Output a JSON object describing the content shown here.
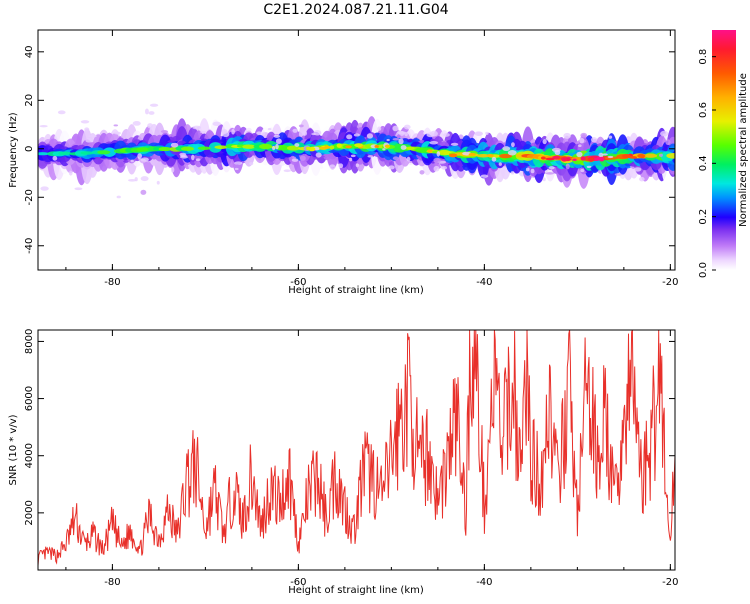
{
  "title": "C2E1.2024.087.21.11.G04",
  "chart_data": [
    {
      "type": "heatmap",
      "xlabel": "Height of straight line (km)",
      "ylabel": "Frequency (Hz)",
      "xlim": [
        -88,
        -19.5
      ],
      "ylim": [
        -50,
        49
      ],
      "xticks": [
        -80,
        -60,
        -40,
        -20
      ],
      "yticks": [
        -40,
        -20,
        0,
        20,
        40
      ],
      "colorbar": {
        "label": "Normalized spectral amplitude",
        "range": [
          0,
          0.9
        ],
        "ticks": [
          0.0,
          0.2,
          0.4,
          0.6,
          0.8
        ]
      },
      "ridge": {
        "x": [
          -88,
          -84,
          -80,
          -76,
          -72,
          -68,
          -64,
          -60,
          -56,
          -52,
          -48,
          -44,
          -40,
          -36,
          -32,
          -28,
          -24,
          -20
        ],
        "y": [
          -2,
          -2,
          -1,
          0,
          0,
          1,
          1,
          0,
          1,
          1,
          0,
          -2,
          -3,
          -3,
          -4,
          -4,
          -3,
          -3
        ],
        "strength": [
          0.35,
          0.4,
          0.45,
          0.5,
          0.5,
          0.55,
          0.5,
          0.55,
          0.55,
          0.6,
          0.55,
          0.6,
          0.7,
          0.75,
          0.8,
          0.9,
          0.7,
          0.65
        ]
      }
    },
    {
      "type": "line",
      "xlabel": "Height of straight line (km)",
      "ylabel": "SNR (10 * v/v)",
      "xlim": [
        -88,
        -19.5
      ],
      "ylim": [
        0,
        8400
      ],
      "xticks": [
        -80,
        -60,
        -40,
        -20
      ],
      "yticks": [
        2000,
        4000,
        6000,
        8000
      ],
      "color": "#e8302a",
      "series": [
        {
          "x": [
            -88,
            -87,
            -86,
            -85,
            -84,
            -83,
            -82,
            -81,
            -80,
            -79,
            -78,
            -77,
            -76,
            -75,
            -74,
            -73,
            -72,
            -71,
            -70,
            -69,
            -68,
            -67,
            -66,
            -65,
            -64,
            -63,
            -62,
            -61,
            -60,
            -59,
            -58,
            -57,
            -56,
            -55,
            -54,
            -53,
            -52,
            -51,
            -50,
            -49,
            -48,
            -47,
            -46,
            -45,
            -44,
            -43,
            -42,
            -41.5,
            -41,
            -40,
            -39,
            -38,
            -37,
            -36,
            -35.5,
            -35,
            -34,
            -33,
            -32,
            -31,
            -30,
            -29,
            -28,
            -27,
            -26,
            -25,
            -24,
            -23,
            -22,
            -21,
            -20.5,
            -20,
            -19.5
          ],
          "y": [
            400,
            600,
            500,
            900,
            1800,
            900,
            1200,
            700,
            1600,
            800,
            1400,
            700,
            1900,
            1100,
            2100,
            1200,
            3200,
            3600,
            1400,
            2800,
            1200,
            3000,
            1700,
            3300,
            1500,
            2900,
            2300,
            3400,
            900,
            2500,
            3300,
            1800,
            3400,
            2200,
            1400,
            3500,
            3300,
            2500,
            4000,
            5200,
            6200,
            3500,
            4200,
            2400,
            3800,
            5400,
            2000,
            8300,
            7600,
            2200,
            6600,
            4300,
            7000,
            3300,
            7700,
            4000,
            3100,
            6000,
            2600,
            6900,
            1900,
            6500,
            4200,
            5300,
            2300,
            5200,
            6500,
            3100,
            4600,
            7500,
            2800,
            900,
            4000
          ]
        }
      ]
    }
  ]
}
